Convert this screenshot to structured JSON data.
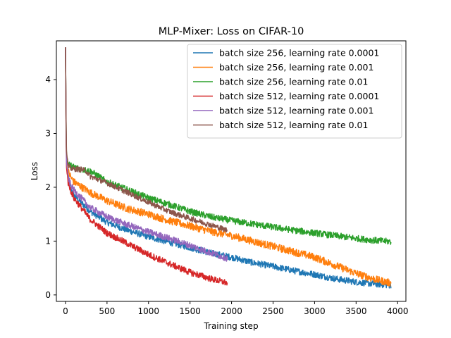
{
  "chart_data": {
    "type": "line",
    "title": "MLP-Mixer: Loss on CIFAR-10",
    "xlabel": "Training step",
    "ylabel": "Loss",
    "xlim": [
      -110,
      4100
    ],
    "ylim": [
      -0.12,
      4.72
    ],
    "xticks": [
      0,
      500,
      1000,
      1500,
      2000,
      2500,
      3000,
      3500,
      4000
    ],
    "yticks": [
      0,
      1,
      2,
      3,
      4
    ],
    "grid": false,
    "legend_position": "top-right",
    "series": [
      {
        "name": "batch size 256, learning rate 0.0001",
        "color": "#1f77b4",
        "noise": 0.06,
        "x": [
          0,
          10,
          30,
          60,
          100,
          200,
          300,
          500,
          750,
          1000,
          1250,
          1500,
          1750,
          2000,
          2250,
          2500,
          2750,
          3000,
          3250,
          3500,
          3750,
          3920
        ],
        "y": [
          4.6,
          2.6,
          2.2,
          2.0,
          1.85,
          1.7,
          1.55,
          1.35,
          1.2,
          1.08,
          0.98,
          0.88,
          0.78,
          0.7,
          0.6,
          0.53,
          0.45,
          0.38,
          0.3,
          0.24,
          0.2,
          0.18
        ]
      },
      {
        "name": "batch size 256, learning rate 0.001",
        "color": "#ff7f0e",
        "noise": 0.07,
        "x": [
          0,
          10,
          30,
          60,
          100,
          200,
          300,
          500,
          750,
          1000,
          1250,
          1500,
          1750,
          2000,
          2250,
          2500,
          2750,
          3000,
          3250,
          3500,
          3750,
          3920
        ],
        "y": [
          4.6,
          2.6,
          2.3,
          2.2,
          2.1,
          2.0,
          1.9,
          1.75,
          1.6,
          1.5,
          1.38,
          1.28,
          1.18,
          1.1,
          1.0,
          0.9,
          0.8,
          0.7,
          0.55,
          0.4,
          0.28,
          0.22
        ]
      },
      {
        "name": "batch size 256, learning rate 0.01",
        "color": "#2ca02c",
        "noise": 0.06,
        "x": [
          0,
          10,
          30,
          60,
          100,
          200,
          300,
          400,
          500,
          750,
          1000,
          1250,
          1500,
          1750,
          2000,
          2250,
          2500,
          2750,
          3000,
          3250,
          3500,
          3750,
          3920
        ],
        "y": [
          4.6,
          2.6,
          2.45,
          2.4,
          2.38,
          2.33,
          2.3,
          2.2,
          2.1,
          1.95,
          1.8,
          1.68,
          1.55,
          1.45,
          1.38,
          1.32,
          1.26,
          1.2,
          1.15,
          1.1,
          1.05,
          1.01,
          0.99
        ]
      },
      {
        "name": "batch size 512, learning rate 0.0001",
        "color": "#d62728",
        "noise": 0.06,
        "x": [
          0,
          10,
          30,
          60,
          100,
          200,
          300,
          500,
          750,
          1000,
          1250,
          1500,
          1750,
          1950
        ],
        "y": [
          4.6,
          2.4,
          2.1,
          1.95,
          1.8,
          1.6,
          1.4,
          1.15,
          0.95,
          0.75,
          0.58,
          0.42,
          0.3,
          0.22
        ]
      },
      {
        "name": "batch size 512, learning rate 0.001",
        "color": "#9467bd",
        "noise": 0.06,
        "x": [
          0,
          10,
          30,
          60,
          100,
          200,
          300,
          500,
          750,
          1000,
          1250,
          1500,
          1750,
          1950
        ],
        "y": [
          4.6,
          2.5,
          2.2,
          2.05,
          1.95,
          1.78,
          1.62,
          1.45,
          1.3,
          1.17,
          1.05,
          0.92,
          0.78,
          0.68
        ]
      },
      {
        "name": "batch size 512, learning rate 0.01",
        "color": "#8c564b",
        "noise": 0.05,
        "x": [
          0,
          10,
          30,
          60,
          100,
          200,
          250,
          300,
          500,
          750,
          1000,
          1250,
          1500,
          1750,
          1950
        ],
        "y": [
          4.6,
          2.7,
          2.4,
          2.35,
          2.34,
          2.33,
          2.3,
          2.2,
          2.08,
          1.9,
          1.72,
          1.55,
          1.42,
          1.3,
          1.2
        ]
      }
    ]
  }
}
